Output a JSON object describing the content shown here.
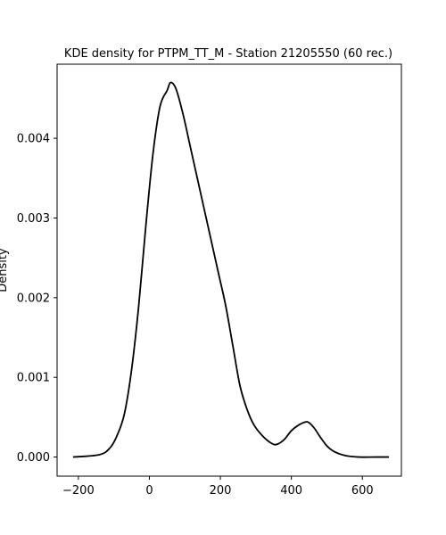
{
  "chart_data": {
    "type": "line",
    "title": "KDE density for PTPM_TT_M - Station 21205550 (60 rec.)",
    "xlabel": "",
    "ylabel": "Density",
    "xlim": [
      -260,
      710
    ],
    "ylim": [
      -0.00024,
      0.00493
    ],
    "xticks": [
      -200,
      0,
      200,
      400,
      600
    ],
    "xtick_labels": [
      "−200",
      "0",
      "200",
      "400",
      "600"
    ],
    "yticks": [
      0.0,
      0.001,
      0.002,
      0.003,
      0.004
    ],
    "ytick_labels": [
      "0.000",
      "0.001",
      "0.002",
      "0.003",
      "0.004"
    ],
    "grid": false,
    "legend": "none",
    "line_color": "#000000",
    "series": [
      {
        "x": [
          -215,
          -140,
          -110,
          -90,
          -70,
          -50,
          -30,
          -10,
          10,
          30,
          50,
          60,
          75,
          95,
          115,
          135,
          155,
          175,
          195,
          215,
          235,
          255,
          275,
          295,
          320,
          345,
          360,
          380,
          400,
          420,
          440,
          450,
          465,
          480,
          500,
          520,
          550,
          590,
          640,
          675
        ],
        "y": [
          0.0,
          3e-05,
          0.00012,
          0.00028,
          0.00055,
          0.0011,
          0.0019,
          0.0029,
          0.0038,
          0.0044,
          0.0046,
          0.0047,
          0.00462,
          0.0043,
          0.0039,
          0.0035,
          0.0031,
          0.0027,
          0.0023,
          0.0019,
          0.0014,
          0.0009,
          0.0006,
          0.0004,
          0.00026,
          0.00017,
          0.00016,
          0.00022,
          0.00033,
          0.0004,
          0.00044,
          0.00043,
          0.00036,
          0.00026,
          0.00014,
          7e-05,
          2e-05,
          0.0,
          0.0,
          0.0
        ]
      }
    ]
  }
}
